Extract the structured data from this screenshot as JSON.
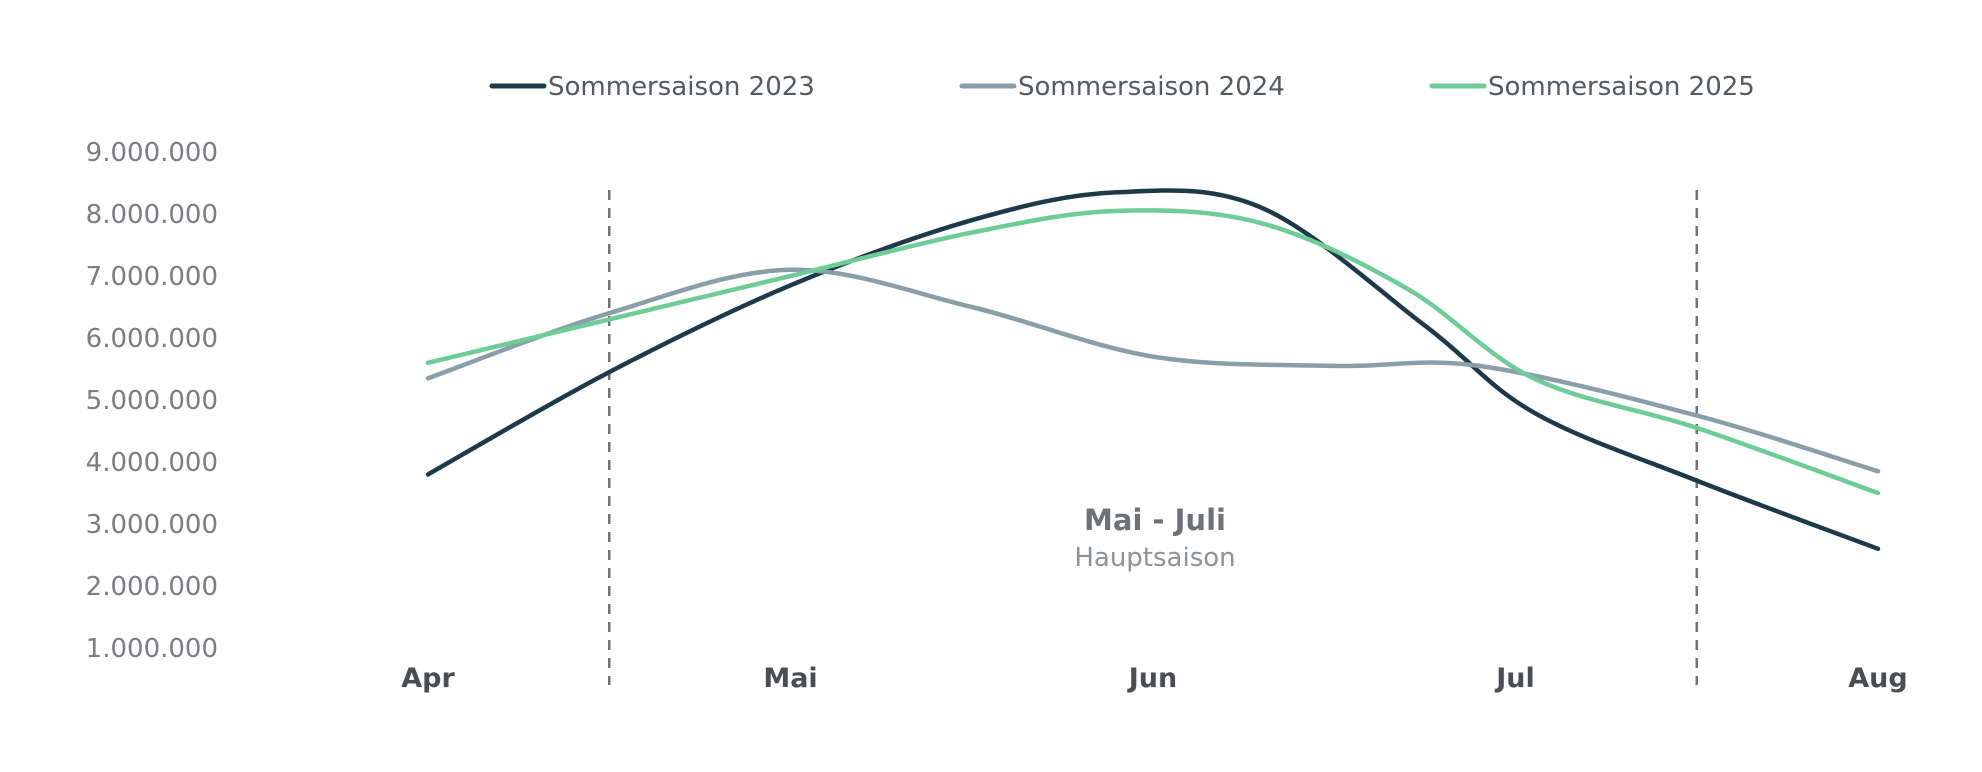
{
  "chart_data": {
    "type": "line",
    "categories": [
      "Apr",
      "Mai",
      "Jun",
      "Jul",
      "Aug"
    ],
    "x": [
      0,
      1,
      2,
      3,
      4
    ],
    "ylim": [
      1000000,
      9000000
    ],
    "yticks": [
      1000000,
      2000000,
      3000000,
      4000000,
      5000000,
      6000000,
      7000000,
      8000000,
      9000000
    ],
    "ytick_labels": [
      "1.000.000",
      "2.000.000",
      "3.000.000",
      "4.000.000",
      "5.000.000",
      "6.000.000",
      "7.000.000",
      "8.000.000",
      "9.000.000"
    ],
    "grid": false,
    "legend_position": "top",
    "series": [
      {
        "name": "Sommersaison 2023",
        "color": "#1c3a4a",
        "points": [
          [
            0,
            3800000
          ],
          [
            0.5,
            5450000
          ],
          [
            1,
            6850000
          ],
          [
            1.5,
            7900000
          ],
          [
            1.9,
            8350000
          ],
          [
            2.3,
            8100000
          ],
          [
            2.75,
            6200000
          ],
          [
            3.05,
            4800000
          ],
          [
            3.5,
            3700000
          ],
          [
            4,
            2600000
          ]
        ]
      },
      {
        "name": "Sommersaison 2024",
        "color": "#8a9ea8",
        "points": [
          [
            0,
            5350000
          ],
          [
            0.5,
            6400000
          ],
          [
            1,
            7100000
          ],
          [
            1.5,
            6500000
          ],
          [
            2,
            5700000
          ],
          [
            2.5,
            5550000
          ],
          [
            2.9,
            5550000
          ],
          [
            3.5,
            4750000
          ],
          [
            4,
            3850000
          ]
        ]
      },
      {
        "name": "Sommersaison 2025",
        "color": "#6dcc97",
        "points": [
          [
            0,
            5600000
          ],
          [
            0.5,
            6300000
          ],
          [
            1,
            7000000
          ],
          [
            1.5,
            7700000
          ],
          [
            1.9,
            8050000
          ],
          [
            2.3,
            7850000
          ],
          [
            2.7,
            6800000
          ],
          [
            3.05,
            5350000
          ],
          [
            3.5,
            4550000
          ],
          [
            4,
            3500000
          ]
        ]
      }
    ],
    "annotations": {
      "region_start": 0.5,
      "region_end": 3.5,
      "title": "Mai - Juli",
      "subtitle": "Hauptsaison"
    }
  }
}
